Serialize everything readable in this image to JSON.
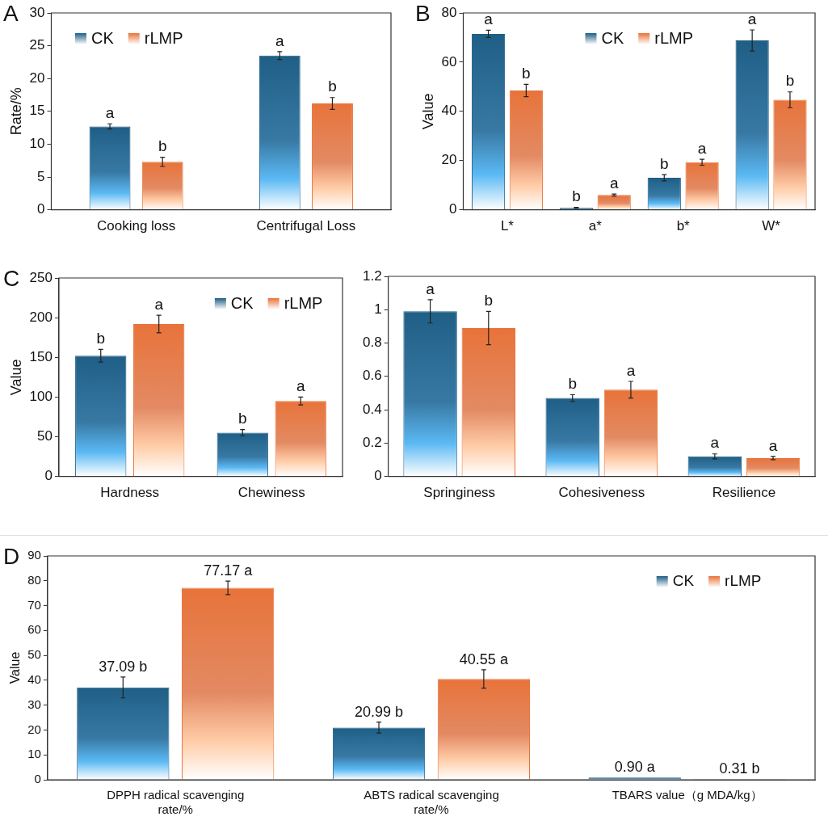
{
  "chart_data": [
    {
      "type": "bar",
      "title": "A",
      "ylabel": "Rate/%",
      "categories": [
        "Cooking loss",
        "Centrifugal Loss"
      ],
      "ylim": [
        0,
        30
      ],
      "yticks": [
        0,
        5,
        10,
        15,
        20,
        25,
        30
      ],
      "grid": false,
      "legend": "top left",
      "series": [
        {
          "name": "CK",
          "color": "#1f5f86",
          "values": [
            12.7,
            23.5
          ],
          "errors": [
            0.4,
            0.6
          ],
          "value_labels": [
            "a",
            "a"
          ]
        },
        {
          "name": "rLMP",
          "color": "#e8733a",
          "values": [
            7.3,
            16.2
          ],
          "errors": [
            0.7,
            0.9
          ],
          "value_labels": [
            "b",
            "b"
          ]
        }
      ]
    },
    {
      "type": "bar",
      "title": "B",
      "ylabel": "Value",
      "categories": [
        "L*",
        "a*",
        "b*",
        "W*"
      ],
      "ylim": [
        0,
        80
      ],
      "yticks": [
        0,
        20,
        40,
        60,
        80
      ],
      "grid": false,
      "legend": "top",
      "series": [
        {
          "name": "CK",
          "color": "#1f5f86",
          "values": [
            71.5,
            0.8,
            13,
            68.8
          ],
          "errors": [
            1.5,
            0.2,
            1.3,
            4.3
          ],
          "value_labels": [
            "a",
            "b",
            "b",
            "a"
          ]
        },
        {
          "name": "rLMP",
          "color": "#e8733a",
          "values": [
            48.5,
            6,
            19.3,
            44.7
          ],
          "errors": [
            2.5,
            0.4,
            1.2,
            3.2
          ],
          "value_labels": [
            "b",
            "a",
            "a",
            "b"
          ]
        }
      ]
    },
    {
      "type": "bar",
      "title": "C",
      "ylabel": "Value",
      "categories": [
        "Hardness",
        "Chewiness"
      ],
      "ylim": [
        0,
        250
      ],
      "yticks": [
        0,
        50,
        100,
        150,
        200,
        250
      ],
      "grid": false,
      "legend": "top right",
      "series": [
        {
          "name": "CK",
          "color": "#1f5f86",
          "values": [
            152,
            55
          ],
          "errors": [
            8,
            4
          ],
          "value_labels": [
            "b",
            "b"
          ]
        },
        {
          "name": "rLMP",
          "color": "#e8733a",
          "values": [
            192,
            95
          ],
          "errors": [
            11,
            5
          ],
          "value_labels": [
            "a",
            "a"
          ]
        }
      ]
    },
    {
      "type": "bar",
      "categories": [
        "Springiness",
        "Cohesiveness",
        "Resilience"
      ],
      "ylim": [
        0,
        1.2
      ],
      "yticks": [
        0,
        0.2,
        0.4,
        0.6,
        0.8,
        1,
        1.2
      ],
      "grid": false,
      "series": [
        {
          "color": "#1f5f86",
          "values": [
            0.99,
            0.47,
            0.12
          ],
          "errors": [
            0.07,
            0.02,
            0.015
          ],
          "value_labels": [
            "a",
            "b",
            "a"
          ]
        },
        {
          "color": "#e8733a",
          "values": [
            0.89,
            0.52,
            0.11
          ],
          "errors": [
            0.1,
            0.05,
            0.01
          ],
          "value_labels": [
            "b",
            "a",
            "a"
          ]
        }
      ]
    },
    {
      "type": "bar",
      "title": "D",
      "ylabel": "Value",
      "categories": [
        "DPPH radical scavenging rate/%",
        "ABTS radical scavenging rate/%",
        "TBARS value（g MDA/kg）"
      ],
      "ylim": [
        0,
        90
      ],
      "yticks": [
        0,
        10,
        20,
        30,
        40,
        50,
        60,
        70,
        80,
        90
      ],
      "grid": false,
      "legend": "top right",
      "series": [
        {
          "name": "CK",
          "color": "#1f5f86",
          "values": [
            37.09,
            20.99,
            0.9
          ],
          "errors": [
            4.2,
            2.2,
            null
          ],
          "value_labels": [
            "37.09 b",
            "20.99 b",
            "0.90 a"
          ]
        },
        {
          "name": "rLMP",
          "color": "#e8733a",
          "values": [
            77.17,
            40.55,
            0.31
          ],
          "errors": [
            2.7,
            3.7,
            null
          ],
          "value_labels": [
            "77.17 a",
            "40.55 a",
            "0.31 b"
          ]
        }
      ]
    }
  ]
}
